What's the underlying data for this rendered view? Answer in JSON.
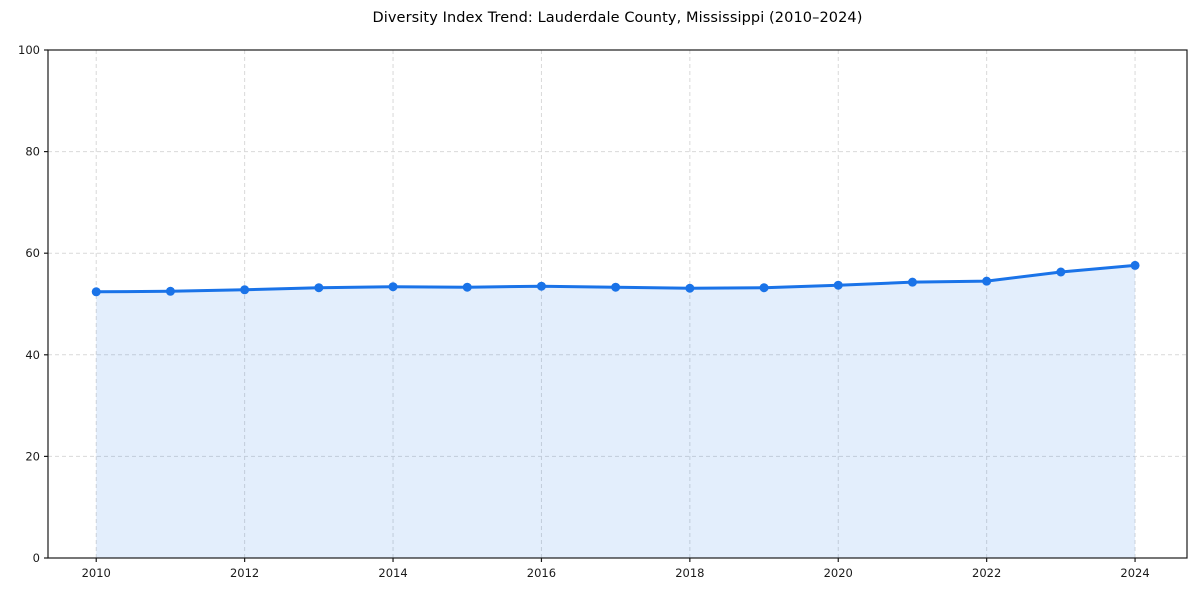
{
  "title": "Diversity Index Trend: Lauderdale County, Mississippi (2010–2024)",
  "colors": {
    "line": "#1a73e8",
    "marker": "#1a73e8",
    "fill": "#1a73e8",
    "grid": "#d9d9d9",
    "spine": "#1a1a1a",
    "tick_label": "#1a1a1a",
    "title_text": "#000000",
    "background": "#ffffff"
  },
  "chart_data": {
    "type": "area",
    "title": "Diversity Index Trend: Lauderdale County, Mississippi (2010–2024)",
    "xlabel": "",
    "ylabel": "",
    "x": [
      2010,
      2011,
      2012,
      2013,
      2014,
      2015,
      2016,
      2017,
      2018,
      2019,
      2020,
      2021,
      2022,
      2023,
      2024
    ],
    "series": [
      {
        "name": "Diversity Index",
        "values": [
          52.4,
          52.5,
          52.8,
          53.2,
          53.4,
          53.3,
          53.5,
          53.3,
          53.1,
          53.2,
          53.7,
          54.3,
          54.5,
          56.3,
          57.6
        ]
      }
    ],
    "xticks": [
      2010,
      2012,
      2014,
      2016,
      2018,
      2020,
      2022,
      2024
    ],
    "yticks": [
      0,
      20,
      40,
      60,
      80,
      100
    ],
    "xlim": [
      2009.35,
      2024.7
    ],
    "ylim": [
      0,
      100
    ],
    "grid": true,
    "grid_style": "dashed",
    "legend": false,
    "marker": "circle"
  }
}
